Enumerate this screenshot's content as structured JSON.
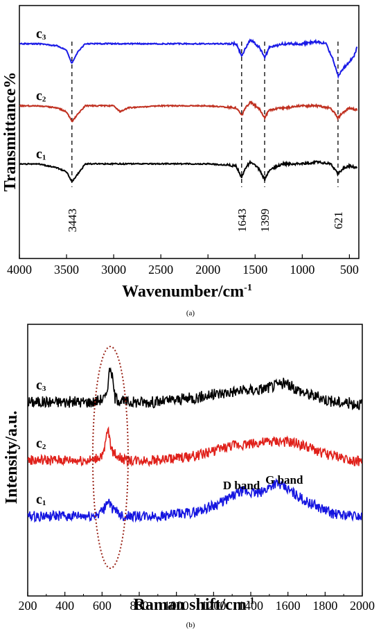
{
  "chart_data": [
    {
      "type": "line",
      "caption": "(a)",
      "xlabel": "Wavenumber/cm",
      "xlabel_sup": "-1",
      "ylabel": "Transmittance%",
      "xlim": [
        4000,
        400
      ],
      "x_reversed": true,
      "x_ticks": [
        4000,
        3500,
        3000,
        2500,
        2000,
        1500,
        1000,
        500
      ],
      "x_tick_labels": [
        "4000",
        "3500",
        "3000",
        "2500",
        "2000",
        "1500",
        "1000",
        "500"
      ],
      "y_ticks_shown": false,
      "peak_markers": [
        {
          "x": 3443,
          "label": "3443"
        },
        {
          "x": 1643,
          "label": "1643"
        },
        {
          "x": 1399,
          "label": "1399"
        },
        {
          "x": 621,
          "label": "621"
        }
      ],
      "series": [
        {
          "name": "c3",
          "label_main": "c",
          "label_sub": "3",
          "color": "#1a1ae6",
          "baseline": 0.82,
          "points": [
            [
              4000,
              0.82
            ],
            [
              3800,
              0.82
            ],
            [
              3600,
              0.81
            ],
            [
              3500,
              0.79
            ],
            [
              3443,
              0.72
            ],
            [
              3380,
              0.78
            ],
            [
              3300,
              0.82
            ],
            [
              3000,
              0.82
            ],
            [
              2500,
              0.82
            ],
            [
              2000,
              0.82
            ],
            [
              1700,
              0.82
            ],
            [
              1643,
              0.76
            ],
            [
              1600,
              0.8
            ],
            [
              1550,
              0.84
            ],
            [
              1500,
              0.82
            ],
            [
              1450,
              0.8
            ],
            [
              1399,
              0.75
            ],
            [
              1350,
              0.8
            ],
            [
              1200,
              0.82
            ],
            [
              1000,
              0.82
            ],
            [
              850,
              0.83
            ],
            [
              750,
              0.82
            ],
            [
              680,
              0.75
            ],
            [
              621,
              0.66
            ],
            [
              560,
              0.7
            ],
            [
              500,
              0.73
            ],
            [
              450,
              0.76
            ],
            [
              420,
              0.8
            ]
          ]
        },
        {
          "name": "c2",
          "label_main": "c",
          "label_sub": "2",
          "color": "#c03020",
          "baseline": 0.51,
          "points": [
            [
              4000,
              0.51
            ],
            [
              3800,
              0.51
            ],
            [
              3600,
              0.5
            ],
            [
              3500,
              0.48
            ],
            [
              3443,
              0.43
            ],
            [
              3380,
              0.47
            ],
            [
              3300,
              0.51
            ],
            [
              3000,
              0.51
            ],
            [
              2930,
              0.48
            ],
            [
              2850,
              0.5
            ],
            [
              2500,
              0.51
            ],
            [
              2000,
              0.51
            ],
            [
              1700,
              0.5
            ],
            [
              1643,
              0.46
            ],
            [
              1600,
              0.5
            ],
            [
              1550,
              0.53
            ],
            [
              1500,
              0.51
            ],
            [
              1450,
              0.49
            ],
            [
              1399,
              0.45
            ],
            [
              1350,
              0.49
            ],
            [
              1200,
              0.5
            ],
            [
              1000,
              0.51
            ],
            [
              850,
              0.51
            ],
            [
              700,
              0.5
            ],
            [
              621,
              0.45
            ],
            [
              560,
              0.48
            ],
            [
              500,
              0.5
            ],
            [
              420,
              0.49
            ]
          ]
        },
        {
          "name": "c1",
          "label_main": "c",
          "label_sub": "1",
          "color": "#000000",
          "baseline": 0.22,
          "points": [
            [
              4000,
              0.22
            ],
            [
              3800,
              0.22
            ],
            [
              3600,
              0.2
            ],
            [
              3500,
              0.18
            ],
            [
              3443,
              0.13
            ],
            [
              3380,
              0.17
            ],
            [
              3300,
              0.22
            ],
            [
              3000,
              0.22
            ],
            [
              2500,
              0.22
            ],
            [
              2000,
              0.22
            ],
            [
              1700,
              0.21
            ],
            [
              1643,
              0.15
            ],
            [
              1600,
              0.2
            ],
            [
              1550,
              0.23
            ],
            [
              1500,
              0.21
            ],
            [
              1450,
              0.19
            ],
            [
              1399,
              0.14
            ],
            [
              1350,
              0.19
            ],
            [
              1200,
              0.22
            ],
            [
              1000,
              0.22
            ],
            [
              850,
              0.23
            ],
            [
              700,
              0.22
            ],
            [
              621,
              0.17
            ],
            [
              560,
              0.2
            ],
            [
              500,
              0.21
            ],
            [
              420,
              0.2
            ]
          ]
        }
      ]
    },
    {
      "type": "line",
      "caption": "(b)",
      "xlabel": "Raman shift/cm",
      "xlabel_sup": "-1",
      "ylabel": "Intensity/a.u.",
      "xlim": [
        200,
        2000
      ],
      "x_ticks": [
        200,
        400,
        600,
        800,
        1000,
        1200,
        1400,
        1600,
        1800,
        2000
      ],
      "x_tick_labels": [
        "200",
        "400",
        "600",
        "800",
        "1000",
        "1200",
        "1400",
        "1600",
        "1800",
        "2000"
      ],
      "y_ticks_shown": false,
      "annotations": [
        {
          "text": "D band",
          "x": 1350
        },
        {
          "text": "G band",
          "x": 1580
        }
      ],
      "highlight_ellipse": {
        "x_center": 645,
        "x_halfwidth": 95
      },
      "series": [
        {
          "name": "c3",
          "label_main": "c",
          "label_sub": "3",
          "color": "#000000",
          "baseline": 0.8,
          "noise": 0.028,
          "points": [
            [
              200,
              0.8
            ],
            [
              550,
              0.8
            ],
            [
              620,
              0.82
            ],
            [
              645,
              0.98
            ],
            [
              670,
              0.82
            ],
            [
              720,
              0.8
            ],
            [
              900,
              0.8
            ],
            [
              1100,
              0.82
            ],
            [
              1300,
              0.85
            ],
            [
              1450,
              0.86
            ],
            [
              1580,
              0.89
            ],
            [
              1700,
              0.84
            ],
            [
              1850,
              0.8
            ],
            [
              2000,
              0.79
            ]
          ]
        },
        {
          "name": "c2",
          "label_main": "c",
          "label_sub": "2",
          "color": "#e0201a",
          "baseline": 0.52,
          "noise": 0.025,
          "points": [
            [
              200,
              0.52
            ],
            [
              550,
              0.52
            ],
            [
              610,
              0.55
            ],
            [
              630,
              0.67
            ],
            [
              655,
              0.56
            ],
            [
              720,
              0.52
            ],
            [
              900,
              0.52
            ],
            [
              1100,
              0.54
            ],
            [
              1300,
              0.59
            ],
            [
              1400,
              0.6
            ],
            [
              1550,
              0.61
            ],
            [
              1650,
              0.6
            ],
            [
              1800,
              0.55
            ],
            [
              2000,
              0.51
            ]
          ]
        },
        {
          "name": "c1",
          "label_main": "c",
          "label_sub": "1",
          "color": "#1515e0",
          "baseline": 0.25,
          "noise": 0.025,
          "points": [
            [
              200,
              0.25
            ],
            [
              550,
              0.25
            ],
            [
              610,
              0.28
            ],
            [
              630,
              0.33
            ],
            [
              660,
              0.28
            ],
            [
              720,
              0.25
            ],
            [
              900,
              0.25
            ],
            [
              1100,
              0.27
            ],
            [
              1250,
              0.32
            ],
            [
              1350,
              0.37
            ],
            [
              1450,
              0.36
            ],
            [
              1530,
              0.41
            ],
            [
              1580,
              0.39
            ],
            [
              1700,
              0.32
            ],
            [
              1850,
              0.26
            ],
            [
              2000,
              0.25
            ]
          ]
        }
      ]
    }
  ]
}
